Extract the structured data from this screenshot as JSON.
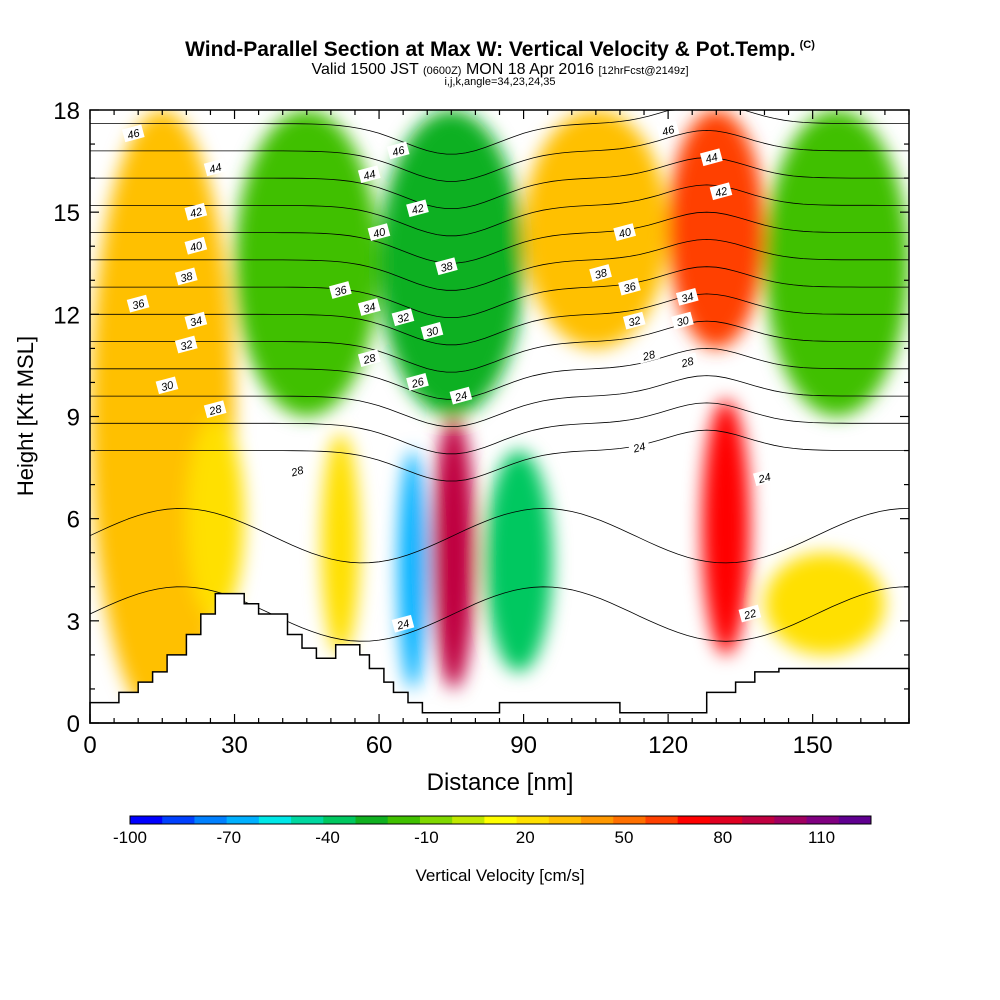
{
  "header": {
    "title": "Wind-Parallel Section at Max W: Vertical Velocity & Pot.Temp.",
    "title_mark": "(C)",
    "subtitle_main_a": "Valid 1500 JST",
    "subtitle_small_a": "(0600Z)",
    "subtitle_main_b": "MON 18 Apr 2016",
    "subtitle_small_b": "[12hrFcst@2149z]",
    "subtitle2": "i,j,k,angle=34,23,24,35"
  },
  "chart_data": {
    "type": "heatmap",
    "xlabel": "Distance [nm]",
    "ylabel": "Height [Kft MSL]",
    "xlim": [
      0,
      170
    ],
    "ylim": [
      0,
      18
    ],
    "x_ticks": [
      0,
      30,
      60,
      90,
      120,
      150
    ],
    "y_ticks": [
      0,
      3,
      6,
      9,
      12,
      15,
      18
    ],
    "colorbar": {
      "label": "Vertical Velocity [cm/s]",
      "range": [
        -100,
        125
      ],
      "step": 10,
      "tick_labels": [
        -100,
        -70,
        -40,
        -10,
        20,
        50,
        80,
        110
      ],
      "colors": [
        "#0000ff",
        "#0040ff",
        "#0080ff",
        "#00b0ff",
        "#00e8e8",
        "#00d8a0",
        "#00c860",
        "#10b020",
        "#40c000",
        "#80d800",
        "#c0e800",
        "#ffff00",
        "#ffe000",
        "#ffc000",
        "#ff9800",
        "#ff7000",
        "#ff4000",
        "#ff0000",
        "#e00020",
        "#c00040",
        "#a00060",
        "#800080",
        "#600090"
      ]
    },
    "series": [
      {
        "name": "Vertical Velocity",
        "kind": "filled-contour",
        "cells": [
          {
            "x": [
              0,
              30
            ],
            "y": [
              0,
              18
            ],
            "value": 30
          },
          {
            "x": [
              30,
              60
            ],
            "y": [
              9,
              18
            ],
            "value": -20
          },
          {
            "x": [
              60,
              90
            ],
            "y": [
              9,
              18
            ],
            "value": -30
          },
          {
            "x": [
              90,
              120
            ],
            "y": [
              11,
              18
            ],
            "value": 30
          },
          {
            "x": [
              120,
              140
            ],
            "y": [
              11,
              18
            ],
            "value": 60
          },
          {
            "x": [
              140,
              170
            ],
            "y": [
              9,
              18
            ],
            "value": -20
          },
          {
            "x": [
              20,
              32
            ],
            "y": [
              3,
              9
            ],
            "value": 20
          },
          {
            "x": [
              48,
              56
            ],
            "y": [
              2,
              8.5
            ],
            "value": 20
          },
          {
            "x": [
              64,
              70
            ],
            "y": [
              1,
              8
            ],
            "value": -70
          },
          {
            "x": [
              71,
              80
            ],
            "y": [
              1,
              9
            ],
            "value": 90
          },
          {
            "x": [
              82,
              96
            ],
            "y": [
              1.5,
              8
            ],
            "value": -40
          },
          {
            "x": [
              127,
              137
            ],
            "y": [
              2,
              9.5
            ],
            "value": 70
          },
          {
            "x": [
              140,
              165
            ],
            "y": [
              2,
              5
            ],
            "value": 20
          }
        ]
      },
      {
        "name": "Pot.Temp.",
        "kind": "contour",
        "levels": [
          22,
          24,
          26,
          28,
          30,
          32,
          34,
          36,
          38,
          40,
          42,
          44,
          46
        ],
        "labels": [
          {
            "text": "46",
            "x": 9,
            "y": 17.3
          },
          {
            "text": "44",
            "x": 26,
            "y": 16.3
          },
          {
            "text": "42",
            "x": 22,
            "y": 15.0
          },
          {
            "text": "40",
            "x": 22,
            "y": 14.0
          },
          {
            "text": "38",
            "x": 20,
            "y": 13.1
          },
          {
            "text": "36",
            "x": 10,
            "y": 12.3
          },
          {
            "text": "34",
            "x": 22,
            "y": 11.8
          },
          {
            "text": "32",
            "x": 20,
            "y": 11.1
          },
          {
            "text": "30",
            "x": 16,
            "y": 9.9
          },
          {
            "text": "28",
            "x": 26,
            "y": 9.2
          },
          {
            "text": "28",
            "x": 43,
            "y": 7.4
          },
          {
            "text": "24",
            "x": 65,
            "y": 2.9
          },
          {
            "text": "46",
            "x": 64,
            "y": 16.8
          },
          {
            "text": "44",
            "x": 58,
            "y": 16.1
          },
          {
            "text": "42",
            "x": 68,
            "y": 15.1
          },
          {
            "text": "40",
            "x": 60,
            "y": 14.4
          },
          {
            "text": "38",
            "x": 74,
            "y": 13.4
          },
          {
            "text": "36",
            "x": 52,
            "y": 12.7
          },
          {
            "text": "34",
            "x": 58,
            "y": 12.2
          },
          {
            "text": "32",
            "x": 65,
            "y": 11.9
          },
          {
            "text": "30",
            "x": 71,
            "y": 11.5
          },
          {
            "text": "28",
            "x": 58,
            "y": 10.7
          },
          {
            "text": "26",
            "x": 68,
            "y": 10.0
          },
          {
            "text": "24",
            "x": 77,
            "y": 9.6
          },
          {
            "text": "46",
            "x": 120,
            "y": 17.4
          },
          {
            "text": "44",
            "x": 129,
            "y": 16.6
          },
          {
            "text": "42",
            "x": 131,
            "y": 15.6
          },
          {
            "text": "40",
            "x": 111,
            "y": 14.4
          },
          {
            "text": "38",
            "x": 106,
            "y": 13.2
          },
          {
            "text": "36",
            "x": 112,
            "y": 12.8
          },
          {
            "text": "34",
            "x": 124,
            "y": 12.5
          },
          {
            "text": "32",
            "x": 113,
            "y": 11.8
          },
          {
            "text": "30",
            "x": 123,
            "y": 11.8
          },
          {
            "text": "28",
            "x": 116,
            "y": 10.8
          },
          {
            "text": "28",
            "x": 124,
            "y": 10.6
          },
          {
            "text": "24",
            "x": 114,
            "y": 8.1
          },
          {
            "text": "24",
            "x": 140,
            "y": 7.2
          },
          {
            "text": "22",
            "x": 137,
            "y": 3.2
          }
        ]
      }
    ],
    "terrain": [
      [
        0,
        0.6
      ],
      [
        6,
        0.6
      ],
      [
        6,
        0.9
      ],
      [
        10,
        0.9
      ],
      [
        10,
        1.2
      ],
      [
        13,
        1.2
      ],
      [
        13,
        1.5
      ],
      [
        16,
        1.5
      ],
      [
        16,
        2.0
      ],
      [
        20,
        2.0
      ],
      [
        20,
        2.6
      ],
      [
        23,
        2.6
      ],
      [
        23,
        3.2
      ],
      [
        26,
        3.2
      ],
      [
        26,
        3.8
      ],
      [
        29,
        3.8
      ],
      [
        29,
        3.8
      ],
      [
        32,
        3.8
      ],
      [
        32,
        3.5
      ],
      [
        35,
        3.5
      ],
      [
        35,
        3.2
      ],
      [
        41,
        3.2
      ],
      [
        41,
        2.6
      ],
      [
        44,
        2.6
      ],
      [
        44,
        2.2
      ],
      [
        47,
        2.2
      ],
      [
        47,
        1.9
      ],
      [
        51,
        1.9
      ],
      [
        51,
        2.3
      ],
      [
        56,
        2.3
      ],
      [
        56,
        2.0
      ],
      [
        58,
        2.0
      ],
      [
        58,
        1.6
      ],
      [
        61,
        1.6
      ],
      [
        61,
        1.2
      ],
      [
        63,
        1.2
      ],
      [
        63,
        0.9
      ],
      [
        66,
        0.9
      ],
      [
        66,
        0.6
      ],
      [
        69,
        0.6
      ],
      [
        69,
        0.3
      ],
      [
        85,
        0.3
      ],
      [
        85,
        0.6
      ],
      [
        110,
        0.6
      ],
      [
        110,
        0.3
      ],
      [
        128,
        0.3
      ],
      [
        128,
        0.9
      ],
      [
        134,
        0.9
      ],
      [
        134,
        1.2
      ],
      [
        138,
        1.2
      ],
      [
        138,
        1.5
      ],
      [
        143,
        1.5
      ],
      [
        143,
        1.6
      ],
      [
        170,
        1.6
      ]
    ]
  }
}
